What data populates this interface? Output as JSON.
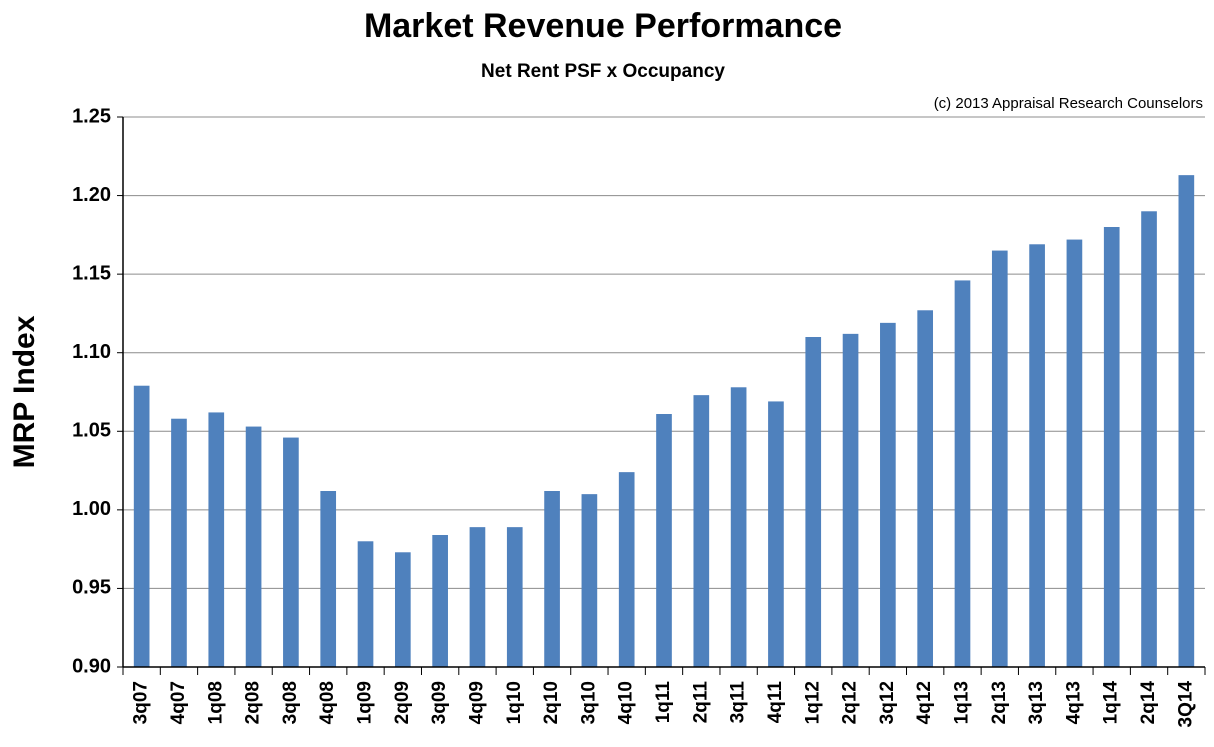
{
  "chart_data": {
    "type": "bar",
    "title": "Market Revenue Performance",
    "subtitle": "Net Rent PSF x Occupancy",
    "annotation": "(c) 2013 Appraisal Research Counselors",
    "y_label": "MRP Index",
    "categories": [
      "3q07",
      "4q07",
      "1q08",
      "2q08",
      "3q08",
      "4q08",
      "1q09",
      "2q09",
      "3q09",
      "4q09",
      "1q10",
      "2q10",
      "3q10",
      "4q10",
      "1q11",
      "2q11",
      "3q11",
      "4q11",
      "1q12",
      "2q12",
      "3q12",
      "4q12",
      "1q13",
      "2q13",
      "3q13",
      "4q13",
      "1q14",
      "2q14",
      "3Q14"
    ],
    "values": [
      1.079,
      1.058,
      1.062,
      1.053,
      1.046,
      1.012,
      0.98,
      0.973,
      0.984,
      0.989,
      0.989,
      1.012,
      1.01,
      1.024,
      1.061,
      1.073,
      1.078,
      1.069,
      1.11,
      1.112,
      1.119,
      1.127,
      1.146,
      1.165,
      1.169,
      1.172,
      1.18,
      1.19,
      1.213
    ],
    "color": "#4f81bd",
    "ylim": [
      0.9,
      1.25
    ],
    "yticks": [
      {
        "value": 0.9,
        "label": "0.90"
      },
      0.95,
      {
        "value": 1.0,
        "label": "1.00"
      },
      1.05,
      {
        "value": 1.1,
        "label": "1.10"
      },
      1.15,
      {
        "value": 1.2,
        "label": "1.20"
      },
      1.25
    ],
    "grid": true
  }
}
